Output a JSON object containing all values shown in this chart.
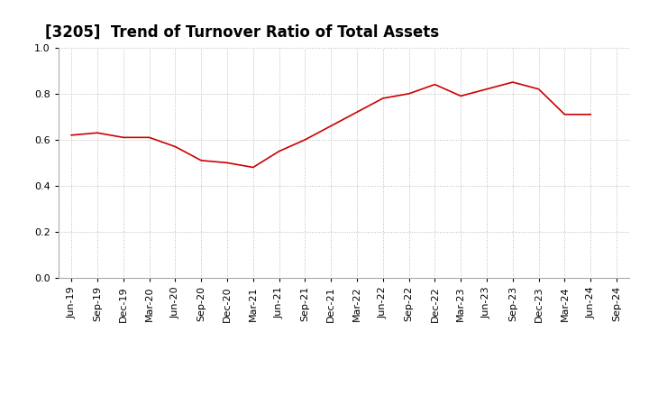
{
  "title": "[3205]  Trend of Turnover Ratio of Total Assets",
  "x_labels": [
    "Jun-19",
    "Sep-19",
    "Dec-19",
    "Mar-20",
    "Jun-20",
    "Sep-20",
    "Dec-20",
    "Mar-21",
    "Jun-21",
    "Sep-21",
    "Dec-21",
    "Mar-22",
    "Jun-22",
    "Sep-22",
    "Dec-22",
    "Mar-23",
    "Jun-23",
    "Sep-23",
    "Dec-23",
    "Mar-24",
    "Jun-24",
    "Sep-24"
  ],
  "y_values": [
    0.62,
    0.63,
    0.61,
    0.61,
    0.57,
    0.51,
    0.5,
    0.48,
    0.55,
    0.6,
    0.66,
    0.72,
    0.78,
    0.8,
    0.84,
    0.79,
    0.82,
    0.85,
    0.82,
    0.71,
    0.71,
    null
  ],
  "line_color": "#cc0000",
  "background_color": "#ffffff",
  "plot_bg_color": "#ffffff",
  "ylim": [
    0.0,
    1.0
  ],
  "yticks": [
    0.0,
    0.2,
    0.4,
    0.6,
    0.8,
    1.0
  ],
  "grid_color": "#bbbbbb",
  "title_fontsize": 12,
  "tick_fontsize": 8,
  "figsize": [
    7.2,
    4.4
  ],
  "dpi": 100
}
